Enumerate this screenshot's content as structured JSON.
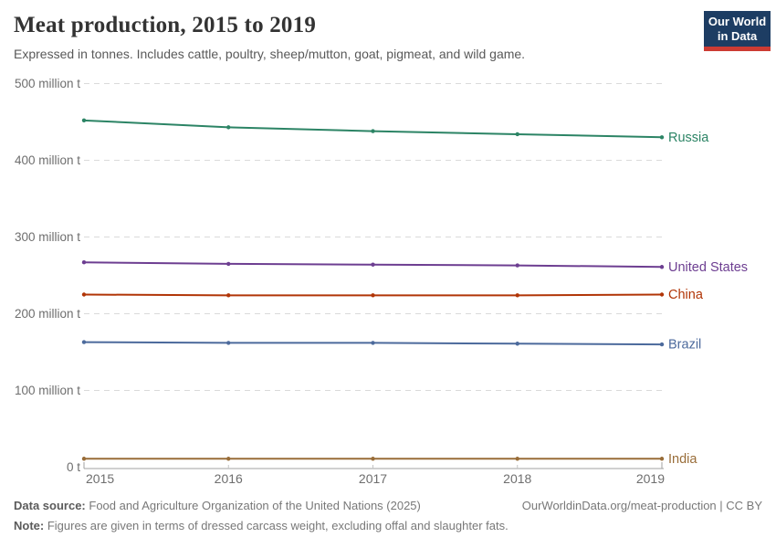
{
  "header": {
    "title": "Meat production, 2015 to 2019",
    "subtitle": "Expressed in tonnes. Includes cattle, poultry, sheep/mutton, goat, pigmeat, and wild game."
  },
  "logo": {
    "line1": "Our World",
    "line2": "in Data",
    "bg_color": "#1d3d63",
    "accent_color": "#cc3b33"
  },
  "chart_data": {
    "type": "line",
    "title": "Meat production, 2015 to 2019",
    "x": [
      2015,
      2016,
      2017,
      2018,
      2019
    ],
    "xtick_labels": [
      "2015",
      "2016",
      "2017",
      "2018",
      "2019"
    ],
    "series": [
      {
        "name": "Russia",
        "color": "#2C8465",
        "values": [
          452,
          443,
          438,
          434,
          430
        ]
      },
      {
        "name": "United States",
        "color": "#6D3E91",
        "values": [
          267,
          265,
          264,
          263,
          261
        ]
      },
      {
        "name": "China",
        "color": "#B13507",
        "values": [
          225,
          224,
          224,
          224,
          225
        ]
      },
      {
        "name": "Brazil",
        "color": "#4C6A9C",
        "values": [
          163,
          162,
          162,
          161,
          160
        ]
      },
      {
        "name": "India",
        "color": "#996D39",
        "values": [
          11,
          11,
          11,
          11,
          11
        ]
      }
    ],
    "unit": "million t",
    "yticks": [
      0,
      100,
      200,
      300,
      400,
      500
    ],
    "ytick_labels": [
      "0 t",
      "100 million t",
      "200 million t",
      "300 million t",
      "400 million t",
      "500 million t"
    ],
    "ylim": [
      0,
      500
    ],
    "grid": "horizontal-dashed",
    "legend_position": "right-end-labels"
  },
  "footer": {
    "datasource_label": "Data source:",
    "datasource_text": "Food and Agriculture Organization of the United Nations (2025)",
    "note_label": "Note:",
    "note_text": "Figures are given in terms of dressed carcass weight, excluding offal and slaughter fats.",
    "link_text": "OurWorldinData.org/meat-production | CC BY"
  }
}
